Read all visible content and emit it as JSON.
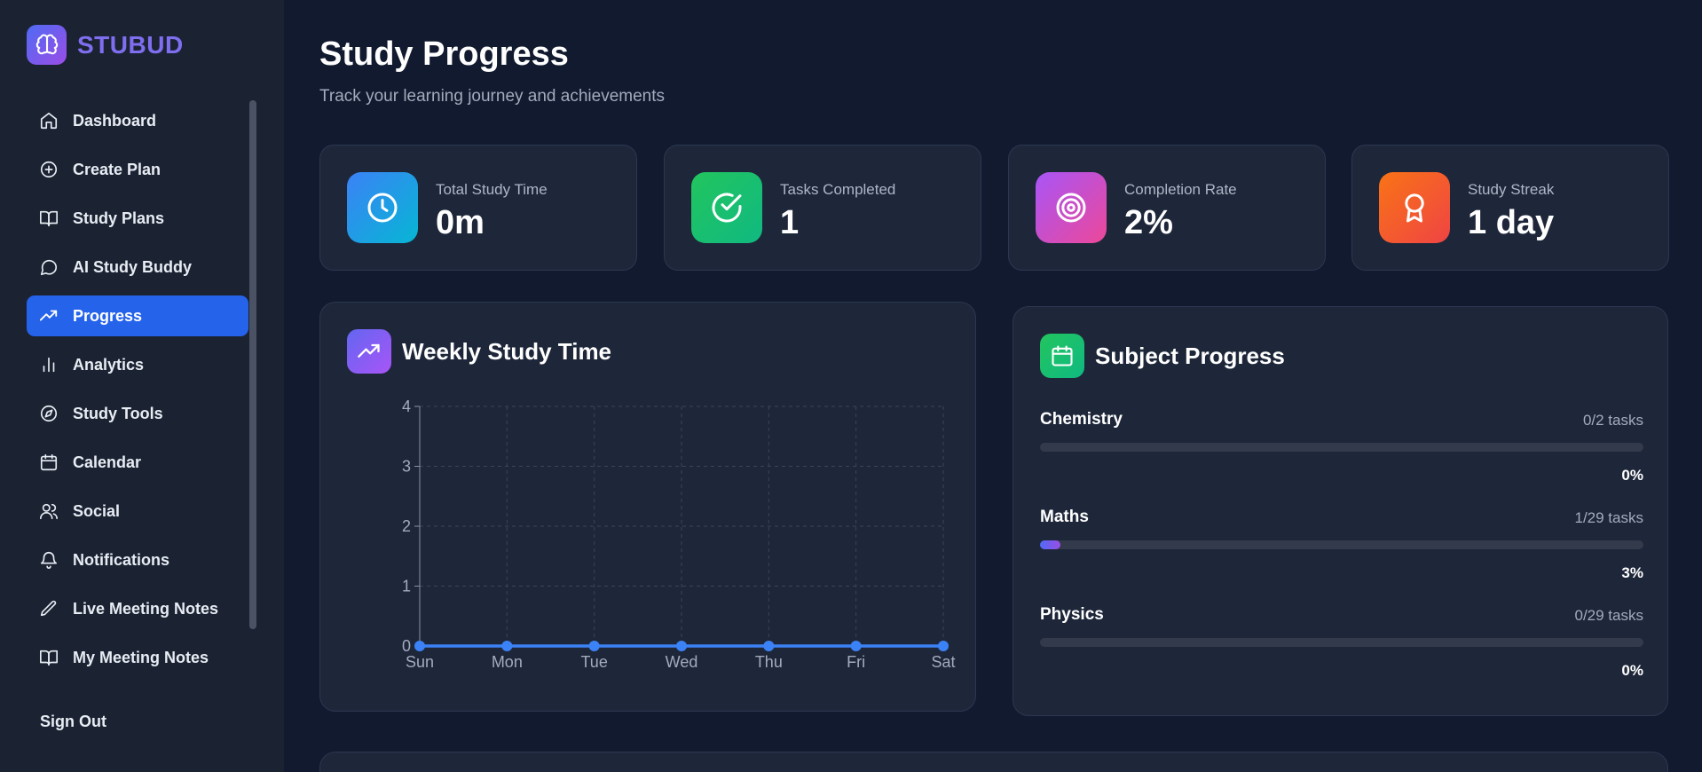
{
  "app": {
    "name": "STUBUD"
  },
  "sidebar": {
    "items": [
      {
        "label": "Dashboard",
        "icon": "home-icon"
      },
      {
        "label": "Create Plan",
        "icon": "plus-circle-icon"
      },
      {
        "label": "Study Plans",
        "icon": "book-icon"
      },
      {
        "label": "AI Study Buddy",
        "icon": "chat-icon"
      },
      {
        "label": "Progress",
        "icon": "trending-up-icon",
        "active": true
      },
      {
        "label": "Analytics",
        "icon": "bar-chart-icon"
      },
      {
        "label": "Study Tools",
        "icon": "compass-icon"
      },
      {
        "label": "Calendar",
        "icon": "calendar-icon"
      },
      {
        "label": "Social",
        "icon": "users-icon"
      },
      {
        "label": "Notifications",
        "icon": "bell-icon"
      },
      {
        "label": "Live Meeting Notes",
        "icon": "pencil-icon"
      },
      {
        "label": "My Meeting Notes",
        "icon": "book-icon"
      }
    ],
    "sign_out": "Sign Out"
  },
  "header": {
    "title": "Study Progress",
    "subtitle": "Track your learning journey and achievements"
  },
  "stats": [
    {
      "label": "Total Study Time",
      "value": "0m",
      "icon": "clock-icon",
      "color": "#2f8ef0"
    },
    {
      "label": "Tasks Completed",
      "value": "1",
      "icon": "check-circle-icon",
      "color": "#1fbf6b"
    },
    {
      "label": "Completion Rate",
      "value": "2%",
      "icon": "target-icon",
      "color": "#c04ee0"
    },
    {
      "label": "Study Streak",
      "value": "1 day",
      "icon": "award-icon",
      "color": "#f0552d"
    }
  ],
  "weekly": {
    "title": "Weekly Study Time",
    "icon": "trending-up-icon"
  },
  "chart_data": {
    "type": "line",
    "categories": [
      "Sun",
      "Mon",
      "Tue",
      "Wed",
      "Thu",
      "Fri",
      "Sat"
    ],
    "values": [
      0,
      0,
      0,
      0,
      0,
      0,
      0
    ],
    "ylim": [
      0,
      4
    ],
    "yticks": [
      "0",
      "1",
      "2",
      "3",
      "4"
    ],
    "grid": true,
    "line_color": "#3b82f6"
  },
  "subjects_panel": {
    "title": "Subject Progress",
    "icon": "calendar-icon",
    "subjects": [
      {
        "name": "Chemistry",
        "count": "0/2 tasks",
        "percent": "0%",
        "fraction": 0
      },
      {
        "name": "Maths",
        "count": "1/29 tasks",
        "percent": "3%",
        "fraction": 0.034
      },
      {
        "name": "Physics",
        "count": "0/29 tasks",
        "percent": "0%",
        "fraction": 0
      }
    ]
  }
}
